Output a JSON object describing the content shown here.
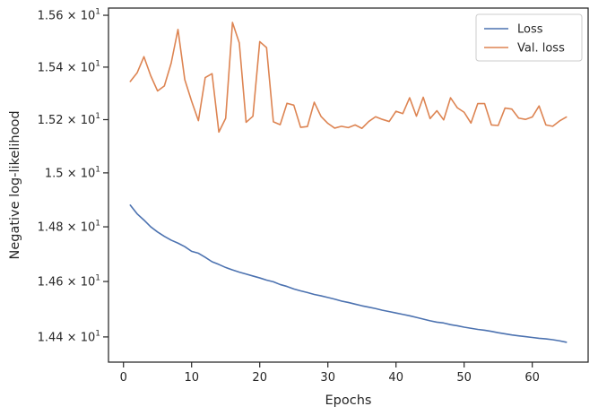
{
  "chart_data": {
    "type": "line",
    "xlabel": "Epochs",
    "ylabel": "Negative log-likelihood",
    "xlim": [
      -2.2,
      68.2
    ],
    "ylim": [
      14.31,
      15.628
    ],
    "yscale": "log",
    "x_ticks": [
      0,
      10,
      20,
      30,
      40,
      50,
      60
    ],
    "y_ticks": [
      {
        "value": 14.4,
        "mantissa": "1.44",
        "base": "10",
        "exp": "1"
      },
      {
        "value": 14.6,
        "mantissa": "1.46",
        "base": "10",
        "exp": "1"
      },
      {
        "value": 14.8,
        "mantissa": "1.48",
        "base": "10",
        "exp": "1"
      },
      {
        "value": 15.0,
        "mantissa": "1.5",
        "base": "10",
        "exp": "1"
      },
      {
        "value": 15.2,
        "mantissa": "1.52",
        "base": "10",
        "exp": "1"
      },
      {
        "value": 15.4,
        "mantissa": "1.54",
        "base": "10",
        "exp": "1"
      },
      {
        "value": 15.6,
        "mantissa": "1.56",
        "base": "10",
        "exp": "1"
      }
    ],
    "grid": false,
    "legend_position": "top-right",
    "x": [
      1,
      2,
      3,
      4,
      5,
      6,
      7,
      8,
      9,
      10,
      11,
      12,
      13,
      14,
      15,
      16,
      17,
      18,
      19,
      20,
      21,
      22,
      23,
      24,
      25,
      26,
      27,
      28,
      29,
      30,
      31,
      32,
      33,
      34,
      35,
      36,
      37,
      38,
      39,
      40,
      41,
      42,
      43,
      44,
      45,
      46,
      47,
      48,
      49,
      50,
      51,
      52,
      53,
      54,
      55,
      56,
      57,
      58,
      59,
      60,
      61,
      62,
      63,
      64,
      65
    ],
    "series": [
      {
        "name": "Loss",
        "color": "#4c72b0",
        "values": [
          14.88,
          14.848,
          14.825,
          14.8,
          14.781,
          14.765,
          14.751,
          14.74,
          14.727,
          14.71,
          14.703,
          14.688,
          14.672,
          14.662,
          14.651,
          14.642,
          14.634,
          14.627,
          14.62,
          14.613,
          14.605,
          14.599,
          14.589,
          14.582,
          14.573,
          14.566,
          14.56,
          14.553,
          14.548,
          14.542,
          14.536,
          14.529,
          14.524,
          14.518,
          14.512,
          14.507,
          14.502,
          14.496,
          14.491,
          14.486,
          14.481,
          14.476,
          14.47,
          14.464,
          14.458,
          14.453,
          14.45,
          14.444,
          14.44,
          14.435,
          14.431,
          14.427,
          14.424,
          14.42,
          14.415,
          14.411,
          14.407,
          14.404,
          14.401,
          14.398,
          14.395,
          14.393,
          14.39,
          14.386,
          14.381
        ]
      },
      {
        "name": "Val. loss",
        "color": "#dd8452",
        "values": [
          15.345,
          15.378,
          15.44,
          15.367,
          15.309,
          15.328,
          15.415,
          15.545,
          15.352,
          15.27,
          15.196,
          15.36,
          15.375,
          15.153,
          15.205,
          15.572,
          15.493,
          15.19,
          15.213,
          15.498,
          15.475,
          15.192,
          15.181,
          15.262,
          15.255,
          15.171,
          15.174,
          15.266,
          15.212,
          15.186,
          15.168,
          15.175,
          15.17,
          15.18,
          15.167,
          15.193,
          15.211,
          15.201,
          15.193,
          15.232,
          15.223,
          15.283,
          15.213,
          15.285,
          15.204,
          15.234,
          15.199,
          15.283,
          15.245,
          15.228,
          15.187,
          15.261,
          15.261,
          15.18,
          15.178,
          15.244,
          15.24,
          15.206,
          15.201,
          15.21,
          15.252,
          15.18,
          15.175,
          15.195,
          15.21
        ]
      }
    ]
  }
}
